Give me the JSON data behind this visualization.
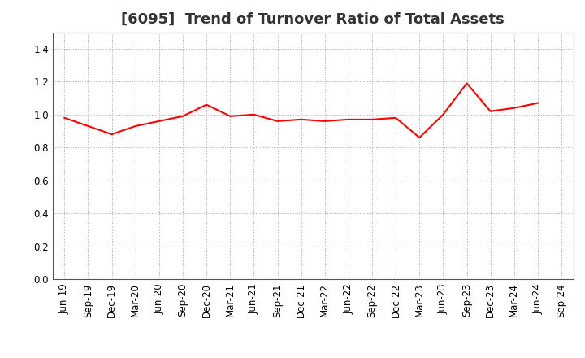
{
  "title": "[6095]  Trend of Turnover Ratio of Total Assets",
  "x_labels": [
    "Jun-19",
    "Sep-19",
    "Dec-19",
    "Mar-20",
    "Jun-20",
    "Sep-20",
    "Dec-20",
    "Mar-21",
    "Jun-21",
    "Sep-21",
    "Dec-21",
    "Mar-22",
    "Jun-22",
    "Sep-22",
    "Dec-22",
    "Mar-23",
    "Jun-23",
    "Sep-23",
    "Dec-23",
    "Mar-24",
    "Jun-24",
    "Sep-24"
  ],
  "y_values": [
    0.98,
    0.93,
    0.88,
    0.93,
    0.96,
    0.99,
    1.06,
    0.99,
    1.0,
    0.96,
    0.97,
    0.96,
    0.97,
    0.97,
    0.98,
    0.86,
    1.0,
    1.19,
    1.02,
    1.04,
    1.07,
    null
  ],
  "line_color": "#ff0000",
  "line_width": 1.5,
  "ylim": [
    0.0,
    1.5
  ],
  "yticks": [
    0.0,
    0.2,
    0.4,
    0.6,
    0.8,
    1.0,
    1.2,
    1.4
  ],
  "bg_color": "#ffffff",
  "plot_bg_color": "#ffffff",
  "grid_color": "#999999",
  "title_fontsize": 13,
  "tick_fontsize": 8.5,
  "title_color": "#333333"
}
